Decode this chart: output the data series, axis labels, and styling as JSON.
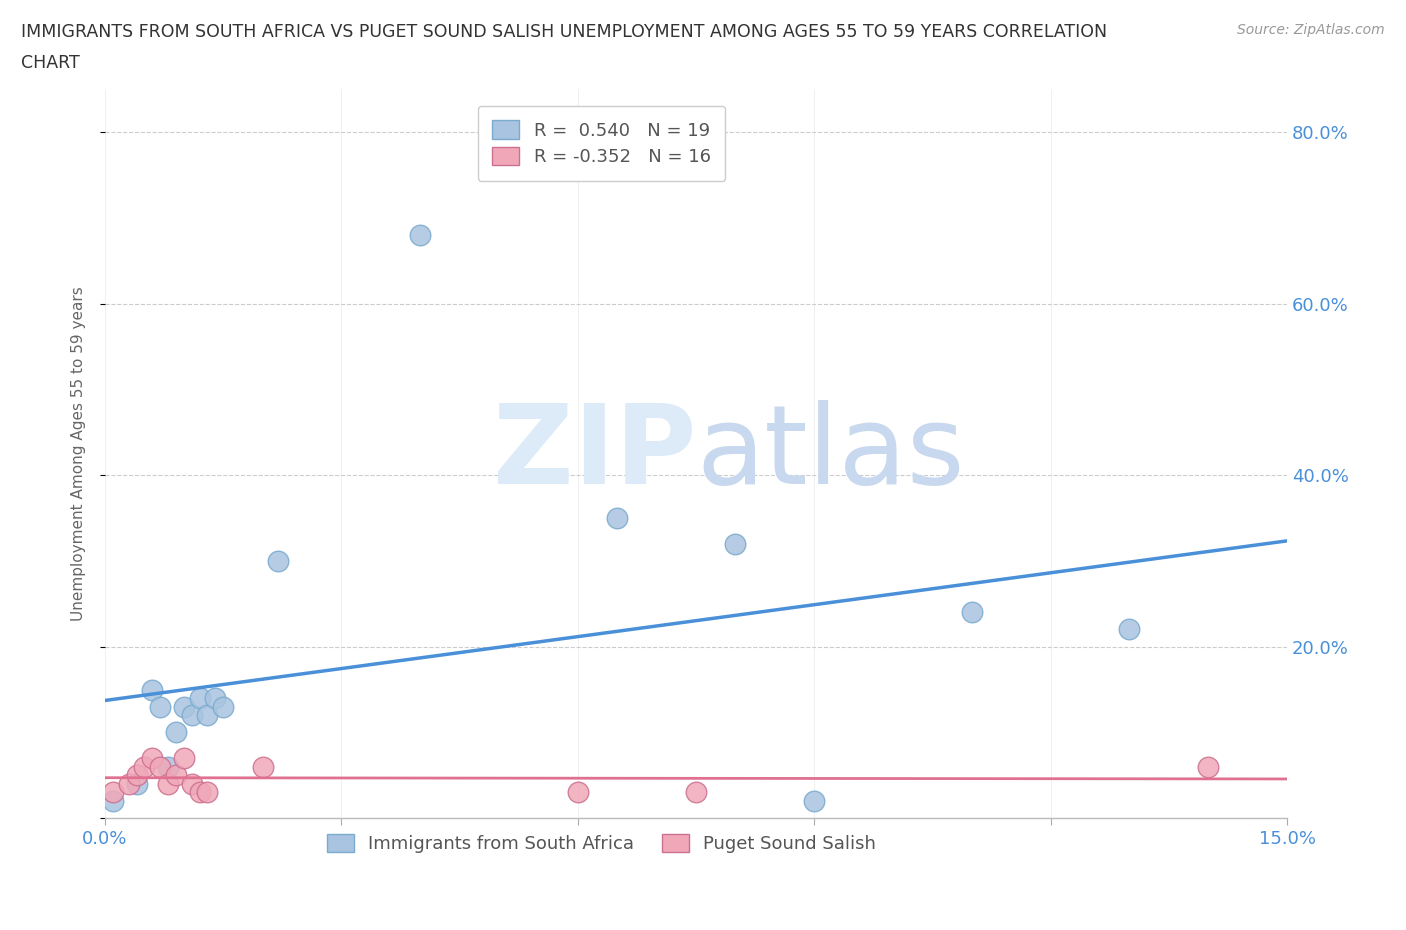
{
  "title_line1": "IMMIGRANTS FROM SOUTH AFRICA VS PUGET SOUND SALISH UNEMPLOYMENT AMONG AGES 55 TO 59 YEARS CORRELATION",
  "title_line2": "CHART",
  "source": "Source: ZipAtlas.com",
  "ylabel": "Unemployment Among Ages 55 to 59 years",
  "xlim": [
    0.0,
    0.15
  ],
  "ylim": [
    0.0,
    0.85
  ],
  "yticks": [
    0.0,
    0.2,
    0.4,
    0.6,
    0.8
  ],
  "ytick_labels": [
    "",
    "20.0%",
    "40.0%",
    "60.0%",
    "80.0%"
  ],
  "xticks": [
    0.0,
    0.03,
    0.06,
    0.09,
    0.12,
    0.15
  ],
  "legend_entries": [
    {
      "label": "R =  0.540   N = 19"
    },
    {
      "label": "R = -0.352   N = 16"
    }
  ],
  "blue_scatter": [
    [
      0.001,
      0.02
    ],
    [
      0.004,
      0.04
    ],
    [
      0.006,
      0.15
    ],
    [
      0.007,
      0.13
    ],
    [
      0.008,
      0.06
    ],
    [
      0.009,
      0.1
    ],
    [
      0.01,
      0.13
    ],
    [
      0.011,
      0.12
    ],
    [
      0.012,
      0.14
    ],
    [
      0.013,
      0.12
    ],
    [
      0.014,
      0.14
    ],
    [
      0.015,
      0.13
    ],
    [
      0.022,
      0.3
    ],
    [
      0.04,
      0.68
    ],
    [
      0.065,
      0.35
    ],
    [
      0.08,
      0.32
    ],
    [
      0.09,
      0.02
    ],
    [
      0.11,
      0.24
    ],
    [
      0.13,
      0.22
    ]
  ],
  "pink_scatter": [
    [
      0.001,
      0.03
    ],
    [
      0.003,
      0.04
    ],
    [
      0.004,
      0.05
    ],
    [
      0.005,
      0.06
    ],
    [
      0.006,
      0.07
    ],
    [
      0.007,
      0.06
    ],
    [
      0.008,
      0.04
    ],
    [
      0.009,
      0.05
    ],
    [
      0.01,
      0.07
    ],
    [
      0.011,
      0.04
    ],
    [
      0.012,
      0.03
    ],
    [
      0.013,
      0.03
    ],
    [
      0.02,
      0.06
    ],
    [
      0.06,
      0.03
    ],
    [
      0.075,
      0.03
    ],
    [
      0.14,
      0.06
    ]
  ],
  "blue_line_color": "#4a90d9",
  "pink_line_color": "#e07090",
  "blue_dot_color": "#a8c4e0",
  "blue_dot_edge": "#7aaace",
  "pink_dot_color": "#f0a8b8",
  "pink_dot_edge": "#cc7090",
  "watermark_zip_color": "#ddeaf8",
  "watermark_atlas_color": "#c8d8ee",
  "background_color": "#ffffff",
  "grid_color": "#cccccc",
  "axis_label_color": "#4a90d9",
  "title_color": "#333333",
  "source_color": "#999999",
  "ylabel_color": "#666666",
  "legend_text_color": "#555555",
  "bottom_legend_labels": [
    "Immigrants from South Africa",
    "Puget Sound Salish"
  ]
}
